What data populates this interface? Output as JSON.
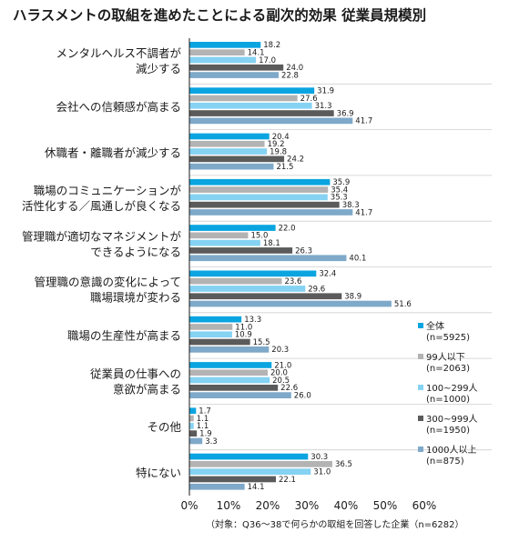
{
  "chart_data": {
    "type": "bar",
    "orientation": "horizontal",
    "title": "ハラスメントの取組を進めたことによる副次的効果 従業員規模別",
    "categories": [
      [
        "メンタルヘルス不調者が",
        "減少する"
      ],
      [
        "会社への信頼感が高まる"
      ],
      [
        "休職者・離職者が減少する"
      ],
      [
        "職場のコミュニケーションが",
        "活性化する／風通しが良くなる"
      ],
      [
        "管理職が適切なマネジメントが",
        "できるようになる"
      ],
      [
        "管理職の意識の変化によって",
        "職場環境が変わる"
      ],
      [
        "職場の生産性が高まる"
      ],
      [
        "従業員の仕事への",
        "意欲が高まる"
      ],
      [
        "その他"
      ],
      [
        "特にない"
      ]
    ],
    "series": [
      {
        "name": "全体",
        "n": "(n=5925)",
        "color": "#0aa5e0",
        "values": [
          18.2,
          31.9,
          20.4,
          35.9,
          22.0,
          32.4,
          13.3,
          21.0,
          1.7,
          30.3
        ]
      },
      {
        "name": "99人以下",
        "n": "(n=2063)",
        "color": "#b3b3b3",
        "values": [
          14.1,
          27.6,
          19.2,
          35.4,
          15.0,
          23.6,
          11.0,
          20.0,
          1.1,
          36.5
        ]
      },
      {
        "name": "100~299人",
        "n": "(n=1000)",
        "color": "#85d2f2",
        "values": [
          17.0,
          31.3,
          19.8,
          35.3,
          18.1,
          29.6,
          10.9,
          20.5,
          1.1,
          31.0
        ]
      },
      {
        "name": "300~999人",
        "n": "(n=1950)",
        "color": "#5b5b5b",
        "values": [
          24.0,
          36.9,
          24.2,
          38.3,
          26.3,
          38.9,
          15.5,
          22.6,
          1.9,
          22.1
        ]
      },
      {
        "name": "1000人以上",
        "n": "(n=875)",
        "color": "#7ea9c9",
        "values": [
          22.8,
          41.7,
          21.5,
          41.7,
          40.1,
          51.6,
          20.3,
          26.0,
          3.3,
          14.1
        ]
      }
    ],
    "xlim": [
      0,
      60
    ],
    "xticks": [
      "0%",
      "10%",
      "20%",
      "30%",
      "40%",
      "50%",
      "60%"
    ],
    "grid": false,
    "legend_position": "right",
    "note": "（対象：Q36～38で何らかの取組を回答した企業（n=6282）"
  }
}
